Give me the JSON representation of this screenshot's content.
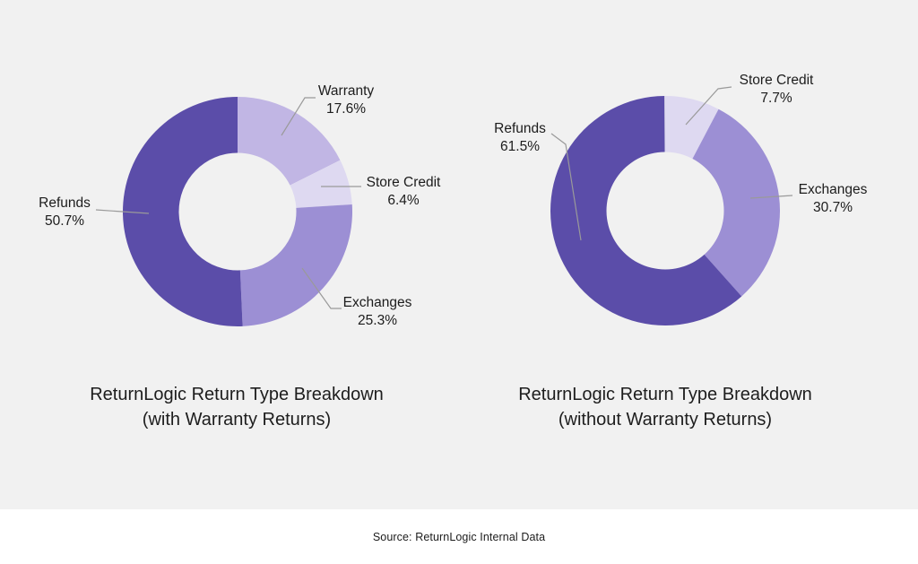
{
  "page": {
    "background_color": "#f1f1f1",
    "footer_background_color": "#ffffff",
    "text_color": "#1c1c1c",
    "leader_line_color": "#9a9a9a"
  },
  "footer": {
    "source_text": "Source: ReturnLogic Internal Data"
  },
  "chart_data": [
    {
      "type": "pie",
      "subtype": "donut",
      "title": "ReturnLogic Return Type Breakdown (with Warranty Returns)",
      "title_line1": "ReturnLogic Return Type Breakdown",
      "title_line2": "(with Warranty Returns)",
      "start_angle_deg_from_top": 0,
      "direction": "clockwise",
      "slices": [
        {
          "label": "Warranty",
          "value_pct": 17.6,
          "display": "17.6%",
          "color": "#c1b6e4"
        },
        {
          "label": "Store Credit",
          "value_pct": 6.4,
          "display": "6.4%",
          "color": "#ded9f1"
        },
        {
          "label": "Exchanges",
          "value_pct": 25.3,
          "display": "25.3%",
          "color": "#9c8fd4"
        },
        {
          "label": "Refunds",
          "value_pct": 50.7,
          "display": "50.7%",
          "color": "#5b4da9"
        }
      ]
    },
    {
      "type": "pie",
      "subtype": "donut",
      "title": "ReturnLogic Return Type Breakdown (without Warranty Returns)",
      "title_line1": "ReturnLogic Return Type Breakdown",
      "title_line2": "(without Warranty Returns)",
      "start_angle_deg_from_top": 0,
      "direction": "clockwise",
      "slices": [
        {
          "label": "Store Credit",
          "value_pct": 7.7,
          "display": "7.7%",
          "color": "#ded9f1"
        },
        {
          "label": "Exchanges",
          "value_pct": 30.7,
          "display": "30.7%",
          "color": "#9c8fd4"
        },
        {
          "label": "Refunds",
          "value_pct": 61.5,
          "display": "61.5%",
          "color": "#5b4da9"
        }
      ]
    }
  ]
}
